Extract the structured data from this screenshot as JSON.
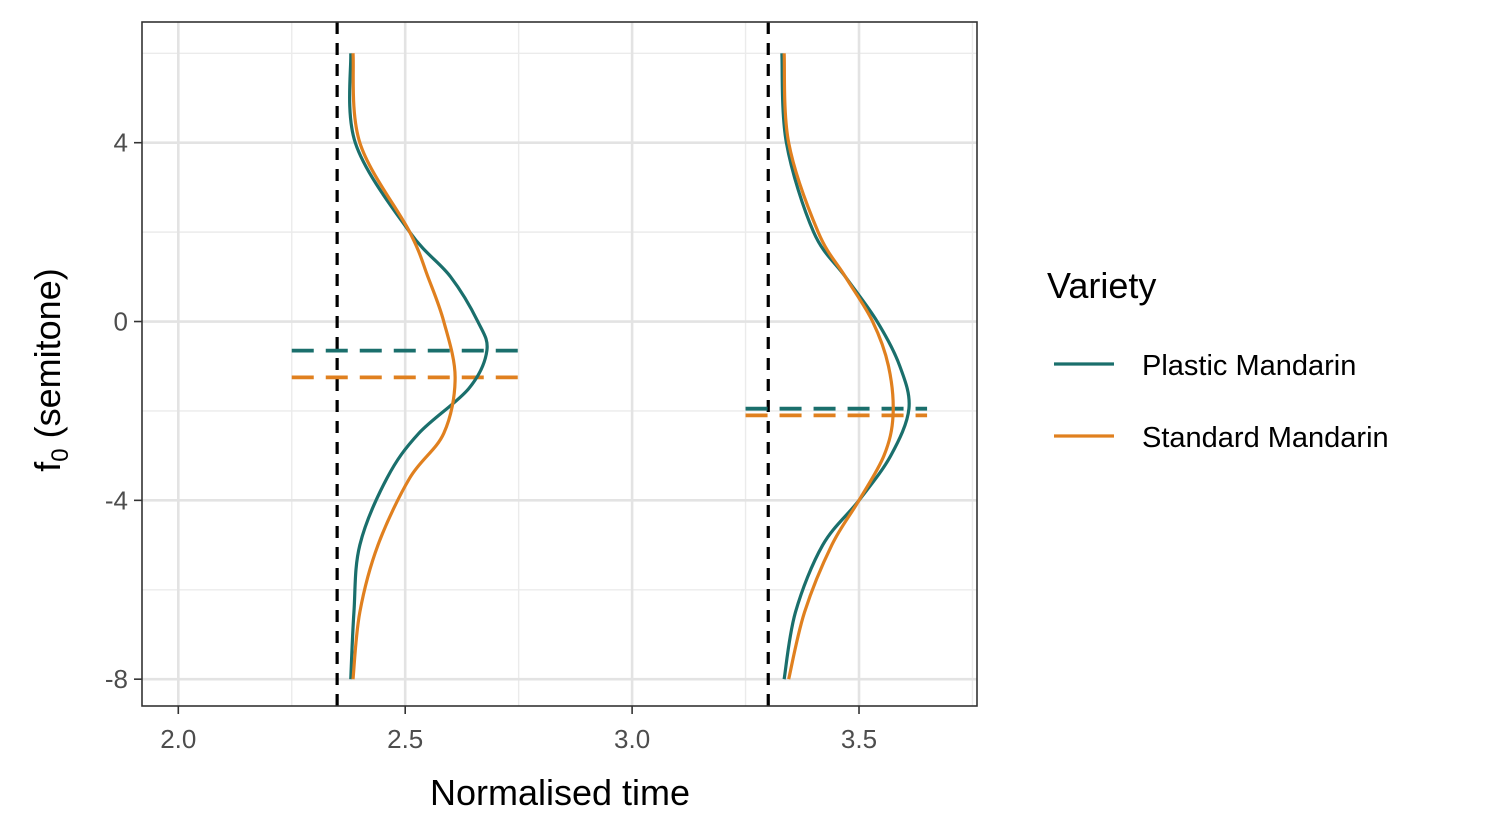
{
  "chart_data": {
    "type": "line",
    "xlabel": "Normalised time",
    "ylabel": "f",
    "ylabel_subscript": "0",
    "ylabel_suffix": " (semitone)",
    "xlim": [
      1.92,
      3.76
    ],
    "ylim": [
      -8.6,
      6.7
    ],
    "x_ticks": [
      2.0,
      2.5,
      3.0,
      3.5
    ],
    "x_tick_labels": [
      "2.0",
      "2.5",
      "3.0",
      "3.5"
    ],
    "x_minor": [
      2.25,
      2.75,
      3.25,
      3.75
    ],
    "y_ticks": [
      4,
      0,
      -4,
      -8
    ],
    "y_tick_labels": [
      "4",
      "0",
      "-4",
      "-8"
    ],
    "y_minor": [
      6,
      2,
      -2,
      -6
    ],
    "grid": true,
    "legend": {
      "title": "Variety",
      "position": "right",
      "entries": [
        {
          "label": "Plastic Mandarin",
          "color": "#1a6f6c"
        },
        {
          "label": "Standard Mandarin",
          "color": "#e0801f"
        }
      ]
    },
    "vlines": [
      {
        "x": 2.35,
        "color": "#000000",
        "style": "dashed"
      },
      {
        "x": 3.3,
        "color": "#000000",
        "style": "dashed"
      }
    ],
    "hlines": [
      {
        "series": "Plastic Mandarin",
        "y": -0.65,
        "x_start": 2.25,
        "x_end": 2.75
      },
      {
        "series": "Standard Mandarin",
        "y": -1.25,
        "x_start": 2.25,
        "x_end": 2.75
      },
      {
        "series": "Plastic Mandarin",
        "y": -1.95,
        "x_start": 3.25,
        "x_end": 3.65
      },
      {
        "series": "Standard Mandarin",
        "y": -2.1,
        "x_start": 3.25,
        "x_end": 3.65
      }
    ],
    "series": [
      {
        "name": "Plastic Mandarin",
        "color": "#1a6f6c",
        "group": 1,
        "y": [
          6.0,
          4.0,
          2.0,
          1.0,
          0.0,
          -0.65,
          -1.5,
          -2.5,
          -3.5,
          -5.0,
          -6.5,
          -8.0
        ],
        "x": [
          2.38,
          2.39,
          2.51,
          2.6,
          2.66,
          2.68,
          2.64,
          2.53,
          2.46,
          2.4,
          2.387,
          2.38
        ]
      },
      {
        "name": "Standard Mandarin",
        "color": "#e0801f",
        "group": 1,
        "y": [
          6.0,
          4.0,
          2.0,
          1.0,
          0.0,
          -1.25,
          -2.5,
          -3.5,
          -5.0,
          -6.5,
          -8.0
        ],
        "x": [
          2.385,
          2.4,
          2.51,
          2.55,
          2.585,
          2.61,
          2.585,
          2.51,
          2.44,
          2.4,
          2.385
        ]
      },
      {
        "name": "Plastic Mandarin",
        "color": "#1a6f6c",
        "group": 2,
        "y": [
          6.0,
          4.0,
          2.0,
          1.0,
          0.0,
          -1.0,
          -1.95,
          -3.0,
          -4.0,
          -5.0,
          -6.5,
          -8.0
        ],
        "x": [
          3.33,
          3.34,
          3.4,
          3.47,
          3.54,
          3.59,
          3.61,
          3.57,
          3.5,
          3.42,
          3.36,
          3.335
        ]
      },
      {
        "name": "Standard Mandarin",
        "color": "#e0801f",
        "group": 2,
        "y": [
          6.0,
          4.0,
          2.0,
          1.0,
          0.0,
          -1.0,
          -2.1,
          -3.0,
          -4.0,
          -5.0,
          -6.5,
          -8.0
        ],
        "x": [
          3.335,
          3.345,
          3.41,
          3.47,
          3.53,
          3.565,
          3.575,
          3.555,
          3.5,
          3.44,
          3.38,
          3.345
        ]
      }
    ]
  }
}
